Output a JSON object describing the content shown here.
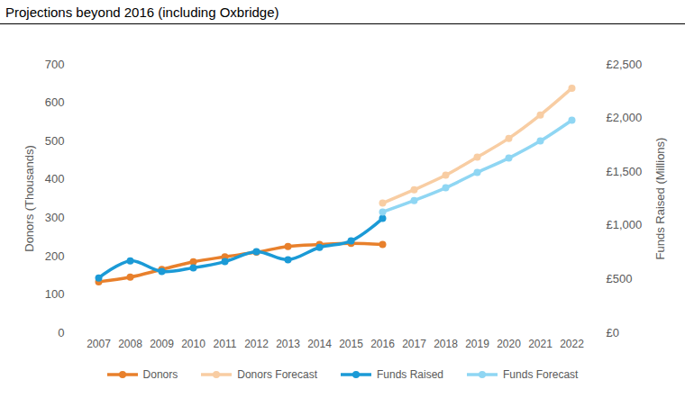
{
  "chart_data": {
    "type": "line",
    "title": "Projections beyond 2016 (including Oxbridge)",
    "categories": [
      "2007",
      "2008",
      "2009",
      "2010",
      "2011",
      "2012",
      "2013",
      "2014",
      "2015",
      "2016",
      "2017",
      "2018",
      "2019",
      "2020",
      "2021",
      "2022"
    ],
    "ylabel": "Donors (Thousands)",
    "y2label": "Funds Raised (Millions)",
    "ylim": [
      0,
      700
    ],
    "yticks": [
      0,
      100,
      200,
      300,
      400,
      500,
      600,
      700
    ],
    "y2lim": [
      0,
      2500
    ],
    "y2ticks": [
      {
        "value": 0,
        "label": "£0"
      },
      {
        "value": 500,
        "label": "£500"
      },
      {
        "value": 1000,
        "label": "£1,000"
      },
      {
        "value": 1500,
        "label": "£1,500"
      },
      {
        "value": 2000,
        "label": "£2,000"
      },
      {
        "value": 2500,
        "label": "£2,500"
      }
    ],
    "grid": false,
    "legend": "bottom",
    "marker": "circle",
    "series": [
      {
        "name": "Donors",
        "color": "#e8802c",
        "values": [
          133,
          145,
          165,
          185,
          198,
          210,
          225,
          230,
          233,
          230,
          null,
          null,
          null,
          null,
          null,
          null
        ]
      },
      {
        "name": "Donors Forecast",
        "color": "#f8cda3",
        "values": [
          null,
          null,
          null,
          null,
          null,
          null,
          null,
          null,
          null,
          338,
          373,
          411,
          458,
          507,
          568,
          638
        ]
      },
      {
        "name": "Funds Raised",
        "color": "#1b9ad6",
        "axis": "y2",
        "values": [
          510,
          670,
          570,
          605,
          662,
          755,
          680,
          795,
          855,
          1065,
          null,
          null,
          null,
          null,
          null,
          null
        ]
      },
      {
        "name": "Funds Forecast",
        "color": "#8fd6f3",
        "axis": "y2",
        "values": [
          null,
          null,
          null,
          null,
          null,
          null,
          null,
          null,
          null,
          1125,
          1232,
          1350,
          1493,
          1627,
          1786,
          1980
        ]
      }
    ]
  }
}
